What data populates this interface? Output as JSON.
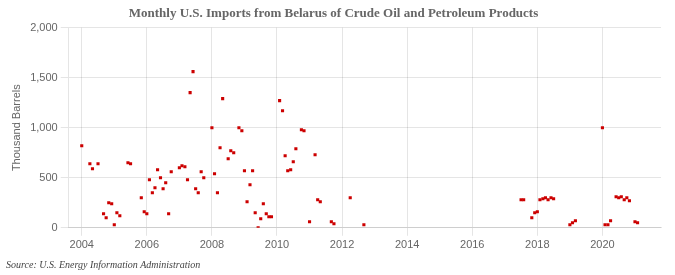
{
  "chart_data": {
    "type": "scatter",
    "title": "Monthly U.S. Imports from Belarus of Crude Oil and Petroleum Products",
    "ylabel": "Thousand Barrels",
    "annotations": [
      "Source: U.S. Energy Information Administration"
    ],
    "color": "#cc0000",
    "marker": "square",
    "grid": true,
    "x": [
      2004.0,
      2004.25,
      2004.33,
      2004.5,
      2004.67,
      2004.75,
      2004.83,
      2004.92,
      2005.0,
      2005.08,
      2005.17,
      2005.42,
      2005.5,
      2005.83,
      2005.92,
      2006.0,
      2006.08,
      2006.17,
      2006.25,
      2006.33,
      2006.42,
      2006.5,
      2006.58,
      2006.67,
      2006.75,
      2007.0,
      2007.08,
      2007.17,
      2007.25,
      2007.33,
      2007.42,
      2007.5,
      2007.58,
      2007.67,
      2007.75,
      2008.0,
      2008.08,
      2008.17,
      2008.25,
      2008.33,
      2008.5,
      2008.58,
      2008.67,
      2008.83,
      2008.92,
      2009.0,
      2009.08,
      2009.17,
      2009.25,
      2009.33,
      2009.42,
      2009.5,
      2009.58,
      2009.67,
      2009.75,
      2009.83,
      2010.08,
      2010.17,
      2010.25,
      2010.33,
      2010.42,
      2010.5,
      2010.58,
      2010.75,
      2010.83,
      2011.0,
      2011.17,
      2011.25,
      2011.33,
      2011.67,
      2011.75,
      2012.25,
      2012.67,
      2017.5,
      2017.58,
      2017.83,
      2017.92,
      2018.0,
      2018.08,
      2018.17,
      2018.25,
      2018.33,
      2018.42,
      2018.5,
      2019.0,
      2019.08,
      2019.17,
      2020.0,
      2020.08,
      2020.17,
      2020.25,
      2020.42,
      2020.5,
      2020.58,
      2020.67,
      2020.75,
      2020.83,
      2021.0,
      2021.08
    ],
    "values": [
      820,
      640,
      590,
      640,
      140,
      100,
      250,
      240,
      30,
      150,
      120,
      650,
      640,
      300,
      160,
      140,
      480,
      350,
      400,
      580,
      500,
      390,
      450,
      140,
      560,
      600,
      620,
      610,
      480,
      1350,
      1560,
      390,
      350,
      560,
      500,
      1000,
      540,
      350,
      800,
      1290,
      690,
      770,
      750,
      1000,
      970,
      570,
      260,
      430,
      570,
      150,
      0,
      90,
      240,
      140,
      110,
      110,
      1270,
      1170,
      720,
      570,
      580,
      660,
      790,
      980,
      970,
      60,
      730,
      280,
      260,
      60,
      40,
      300,
      30,
      280,
      280,
      100,
      150,
      160,
      280,
      290,
      300,
      280,
      300,
      290,
      30,
      50,
      70,
      1000,
      30,
      30,
      70,
      310,
      300,
      310,
      280,
      300,
      270,
      60,
      50
    ],
    "xlim": [
      2003.6,
      2021.8
    ],
    "ylim": [
      0,
      2000
    ],
    "xticks": [
      2004,
      2006,
      2008,
      2010,
      2012,
      2014,
      2016,
      2018,
      2020
    ],
    "yticks": [
      0,
      500,
      {
        "value": 1000,
        "label": "1,000"
      },
      {
        "value": 1500,
        "label": "1,500"
      },
      {
        "value": 2000,
        "label": "2,000"
      }
    ]
  }
}
